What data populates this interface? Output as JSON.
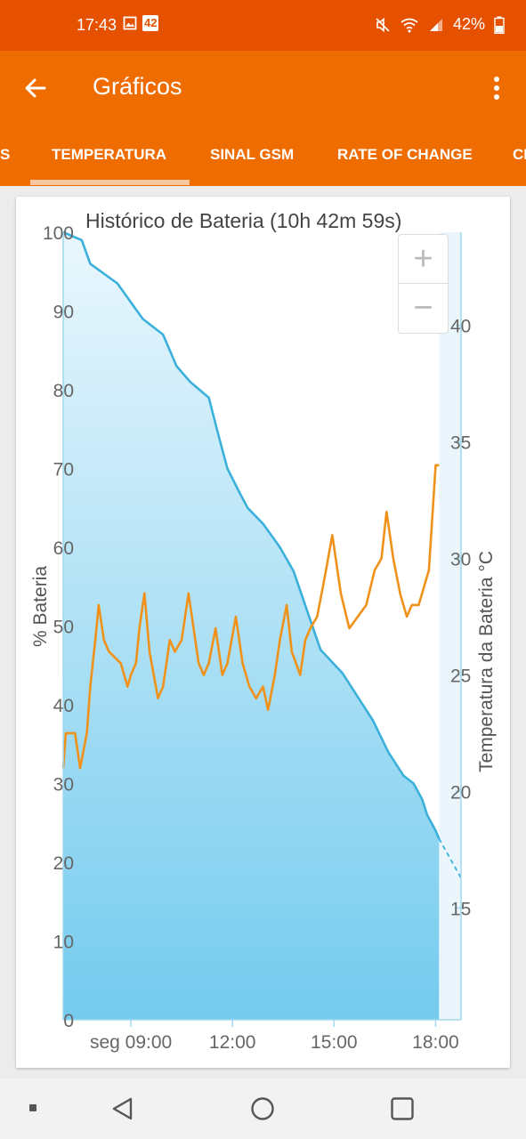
{
  "status_bar": {
    "time": "17:43",
    "badge": "42",
    "battery": "42%"
  },
  "app_bar": {
    "title": "Gráficos"
  },
  "tabs": [
    "S",
    "TEMPERATURA",
    "SINAL GSM",
    "RATE OF CHANGE",
    "CI"
  ],
  "zoom": {
    "in": "+",
    "out": "−"
  },
  "colors": {
    "status": "#e65100",
    "appbar": "#ef6c00",
    "battery_line": "#3ab0da",
    "temp_line": "#f0921a"
  },
  "chart_data": {
    "type": "line",
    "title": "Histórico de Bateria (10h 42m 59s)",
    "xlabel": "",
    "ylabel_left": "% Bateria",
    "ylabel_right": "Temperatura da Bateria °C",
    "x_ticks": [
      "seg 09:00",
      "12:00",
      "15:00",
      "18:00"
    ],
    "x_tick_hours": [
      9,
      12,
      15,
      18
    ],
    "xlim_hours": [
      7.0,
      18.75
    ],
    "y_left_ticks": [
      "0",
      "10",
      "20",
      "30",
      "40",
      "50",
      "60",
      "70",
      "80",
      "90",
      "100"
    ],
    "y_left_lim": [
      0,
      100
    ],
    "y_right_ticks": [
      "15",
      "20",
      "25",
      "30",
      "35",
      "40"
    ],
    "y_right_lim": [
      10.2,
      44.0
    ],
    "grid": false,
    "series": [
      {
        "axis": "left",
        "fill": true,
        "points": [
          [
            7.0,
            100
          ],
          [
            7.55,
            99
          ],
          [
            7.8,
            96
          ],
          [
            8.6,
            93.5
          ],
          [
            9.35,
            89
          ],
          [
            9.95,
            87
          ],
          [
            10.35,
            83
          ],
          [
            10.75,
            81
          ],
          [
            11.3,
            79
          ],
          [
            11.6,
            74
          ],
          [
            11.85,
            70
          ],
          [
            12.2,
            67
          ],
          [
            12.45,
            65
          ],
          [
            12.9,
            63
          ],
          [
            13.4,
            60
          ],
          [
            13.8,
            57
          ],
          [
            14.2,
            52
          ],
          [
            14.6,
            47
          ],
          [
            15.25,
            44
          ],
          [
            15.7,
            41
          ],
          [
            16.15,
            38
          ],
          [
            16.6,
            34
          ],
          [
            17.05,
            31
          ],
          [
            17.35,
            30
          ],
          [
            17.6,
            28
          ],
          [
            17.75,
            26
          ],
          [
            18.0,
            24
          ],
          [
            18.1,
            23
          ]
        ]
      },
      {
        "axis": "left",
        "dashed": true,
        "points": [
          [
            18.1,
            23
          ],
          [
            18.75,
            18
          ]
        ]
      },
      {
        "axis": "right",
        "points": [
          [
            7.0,
            21.0
          ],
          [
            7.08,
            22.5
          ],
          [
            7.25,
            22.5
          ],
          [
            7.35,
            22.5
          ],
          [
            7.5,
            21.0
          ],
          [
            7.7,
            22.5
          ],
          [
            7.8,
            24.5
          ],
          [
            7.95,
            26.5
          ],
          [
            8.05,
            28.0
          ],
          [
            8.2,
            26.5
          ],
          [
            8.35,
            26.0
          ],
          [
            8.7,
            25.5
          ],
          [
            8.9,
            24.5
          ],
          [
            9.0,
            25.0
          ],
          [
            9.15,
            25.5
          ],
          [
            9.25,
            27.0
          ],
          [
            9.4,
            28.5
          ],
          [
            9.55,
            26.0
          ],
          [
            9.8,
            24.0
          ],
          [
            9.95,
            24.5
          ],
          [
            10.15,
            26.5
          ],
          [
            10.3,
            26.0
          ],
          [
            10.5,
            26.5
          ],
          [
            10.7,
            28.5
          ],
          [
            10.85,
            27.0
          ],
          [
            11.0,
            25.5
          ],
          [
            11.15,
            25.0
          ],
          [
            11.3,
            25.5
          ],
          [
            11.5,
            27.0
          ],
          [
            11.7,
            25.0
          ],
          [
            11.85,
            25.5
          ],
          [
            12.1,
            27.5
          ],
          [
            12.3,
            25.5
          ],
          [
            12.5,
            24.5
          ],
          [
            12.7,
            24.0
          ],
          [
            12.9,
            24.5
          ],
          [
            13.05,
            23.5
          ],
          [
            13.25,
            25.0
          ],
          [
            13.4,
            26.5
          ],
          [
            13.6,
            28.0
          ],
          [
            13.75,
            26.0
          ],
          [
            14.0,
            25.0
          ],
          [
            14.15,
            26.5
          ],
          [
            14.3,
            27.0
          ],
          [
            14.5,
            27.5
          ],
          [
            14.7,
            29.0
          ],
          [
            14.95,
            31.0
          ],
          [
            15.2,
            28.5
          ],
          [
            15.45,
            27.0
          ],
          [
            15.7,
            27.5
          ],
          [
            15.95,
            28.0
          ],
          [
            16.2,
            29.5
          ],
          [
            16.4,
            30.0
          ],
          [
            16.55,
            32.0
          ],
          [
            16.75,
            30.0
          ],
          [
            16.95,
            28.5
          ],
          [
            17.15,
            27.5
          ],
          [
            17.3,
            28.0
          ],
          [
            17.5,
            28.0
          ],
          [
            17.8,
            29.5
          ],
          [
            18.0,
            34.0
          ],
          [
            18.1,
            34.0
          ]
        ]
      }
    ]
  }
}
